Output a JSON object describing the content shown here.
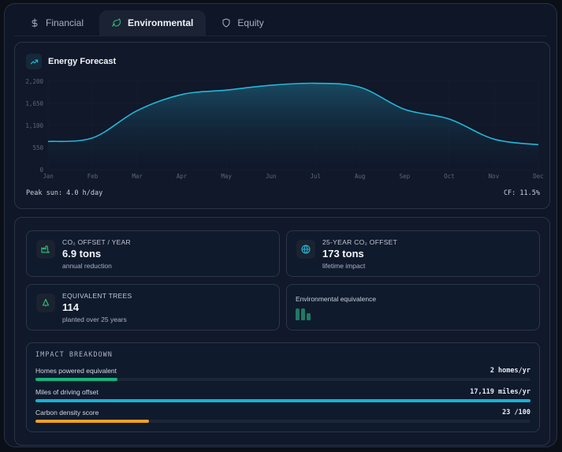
{
  "tabs": [
    {
      "label": "Financial",
      "icon": "dollar-icon",
      "active": false
    },
    {
      "label": "Environmental",
      "icon": "leaf-icon",
      "active": true
    },
    {
      "label": "Equity",
      "icon": "shield-icon",
      "active": false
    }
  ],
  "forecast": {
    "title": "Energy Forecast",
    "icon": "trending-up-icon",
    "peak_sun": "Peak sun: 4.0 h/day",
    "capacity_factor": "CF: 11.5%"
  },
  "chart_data": {
    "type": "area",
    "title": "Energy Forecast",
    "categories": [
      "Jan",
      "Feb",
      "Mar",
      "Apr",
      "May",
      "Jun",
      "Jul",
      "Aug",
      "Sep",
      "Oct",
      "Nov",
      "Dec"
    ],
    "values": [
      700,
      790,
      1470,
      1870,
      1980,
      2100,
      2150,
      2050,
      1500,
      1260,
      760,
      620
    ],
    "yticks": [
      "0",
      "550",
      "1,100",
      "1,650",
      "2,200"
    ],
    "ylim": [
      0,
      2200
    ],
    "xlabel": "",
    "ylabel": "",
    "grid": true,
    "line_color": "#22b8d6"
  },
  "stats": [
    {
      "label": "CO₂ OFFSET / YEAR",
      "value": "6.9 tons",
      "sub": "annual reduction",
      "icon": "factory-icon"
    },
    {
      "label": "25-YEAR CO₂ OFFSET",
      "value": "173 tons",
      "sub": "lifetime impact",
      "icon": "globe-icon"
    },
    {
      "label": "EQUIVALENT TREES",
      "value": "114",
      "sub": "planted over 25 years",
      "icon": "tree-icon"
    }
  ],
  "equivalence": {
    "title": "Environmental equivalence"
  },
  "impact": {
    "title": "IMPACT BREAKDOWN",
    "rows": [
      {
        "label": "Homes powered equivalent",
        "value": "2 homes/yr",
        "percent": 16.5,
        "color": "#17b47e"
      },
      {
        "label": "Miles of driving offset",
        "value": "17,119 miles/yr",
        "percent": 100,
        "color": "#16b3d2"
      },
      {
        "label": "Carbon density score",
        "value": "23 /100",
        "percent": 23,
        "color": "#f0a21c"
      }
    ]
  }
}
